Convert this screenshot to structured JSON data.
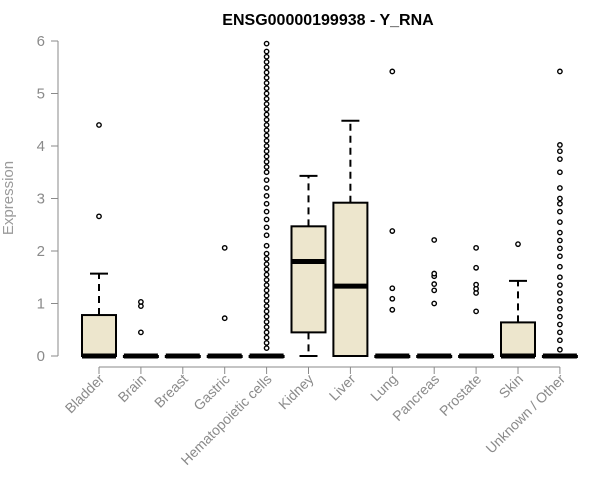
{
  "chart_data": {
    "type": "box",
    "title": "ENSG00000199938 - Y_RNA",
    "ylabel": "Expression",
    "xlabel": "",
    "ylim": [
      0,
      6
    ],
    "yticks": [
      0,
      1,
      2,
      3,
      4,
      5,
      6
    ],
    "grid": false,
    "box_fill": "#ede6cd",
    "categories": [
      "Bladder",
      "Brain",
      "Breast",
      "Gastric",
      "Hematopoietic cells",
      "Kidney",
      "Liver",
      "Lung",
      "Pancreas",
      "Prostate",
      "Skin",
      "Unknown / Other"
    ],
    "boxes": [
      {
        "category": "Bladder",
        "q1": 0,
        "median": 0,
        "q3": 0.78,
        "whisker_low": 0,
        "whisker_high": 1.57,
        "outliers": [
          2.66,
          4.4
        ]
      },
      {
        "category": "Brain",
        "q1": 0,
        "median": 0,
        "q3": 0,
        "whisker_low": 0,
        "whisker_high": 0,
        "outliers": [
          0.45,
          0.95,
          1.03
        ]
      },
      {
        "category": "Breast",
        "q1": 0,
        "median": 0,
        "q3": 0,
        "whisker_low": 0,
        "whisker_high": 0,
        "outliers": []
      },
      {
        "category": "Gastric",
        "q1": 0,
        "median": 0,
        "q3": 0,
        "whisker_low": 0,
        "whisker_high": 0,
        "outliers": [
          0.72,
          2.06
        ]
      },
      {
        "category": "Hematopoietic cells",
        "q1": 0,
        "median": 0,
        "q3": 0,
        "whisker_low": 0,
        "whisker_high": 0,
        "outliers": [
          0.15,
          0.25,
          0.35,
          0.45,
          0.55,
          0.65,
          0.75,
          0.85,
          0.95,
          1.05,
          1.15,
          1.25,
          1.35,
          1.45,
          1.55,
          1.65,
          1.75,
          1.85,
          1.95,
          2.1,
          2.3,
          2.45,
          2.6,
          2.75,
          2.9,
          3.05,
          3.2,
          3.35,
          3.5,
          3.6,
          3.7,
          3.8,
          3.9,
          4.0,
          4.1,
          4.2,
          4.3,
          4.4,
          4.5,
          4.6,
          4.7,
          4.8,
          4.9,
          5.0,
          5.1,
          5.2,
          5.3,
          5.4,
          5.5,
          5.6,
          5.7,
          5.8,
          5.95
        ]
      },
      {
        "category": "Kidney",
        "q1": 0.45,
        "median": 1.8,
        "q3": 2.47,
        "whisker_low": 0,
        "whisker_high": 3.43,
        "outliers": []
      },
      {
        "category": "Liver",
        "q1": 0,
        "median": 1.33,
        "q3": 2.92,
        "whisker_low": 0,
        "whisker_high": 4.48,
        "outliers": []
      },
      {
        "category": "Lung",
        "q1": 0,
        "median": 0,
        "q3": 0,
        "whisker_low": 0,
        "whisker_high": 0,
        "outliers": [
          0.88,
          1.09,
          1.29,
          2.38,
          5.42
        ]
      },
      {
        "category": "Pancreas",
        "q1": 0,
        "median": 0,
        "q3": 0,
        "whisker_low": 0,
        "whisker_high": 0,
        "outliers": [
          1.0,
          1.25,
          1.37,
          1.52,
          1.57,
          2.21
        ]
      },
      {
        "category": "Prostate",
        "q1": 0,
        "median": 0,
        "q3": 0,
        "whisker_low": 0,
        "whisker_high": 0,
        "outliers": [
          0.85,
          1.2,
          1.28,
          1.36,
          1.68,
          2.06
        ]
      },
      {
        "category": "Skin",
        "q1": 0,
        "median": 0,
        "q3": 0.64,
        "whisker_low": 0,
        "whisker_high": 1.43,
        "outliers": [
          2.13
        ]
      },
      {
        "category": "Unknown / Other",
        "q1": 0,
        "median": 0,
        "q3": 0,
        "whisker_low": 0,
        "whisker_high": 0,
        "outliers": [
          0.12,
          0.3,
          0.45,
          0.6,
          0.75,
          0.9,
          1.05,
          1.2,
          1.35,
          1.5,
          1.7,
          1.9,
          2.05,
          2.2,
          2.35,
          2.55,
          2.75,
          2.9,
          3.0,
          3.2,
          3.5,
          3.75,
          3.9,
          4.02,
          5.42
        ]
      }
    ]
  }
}
